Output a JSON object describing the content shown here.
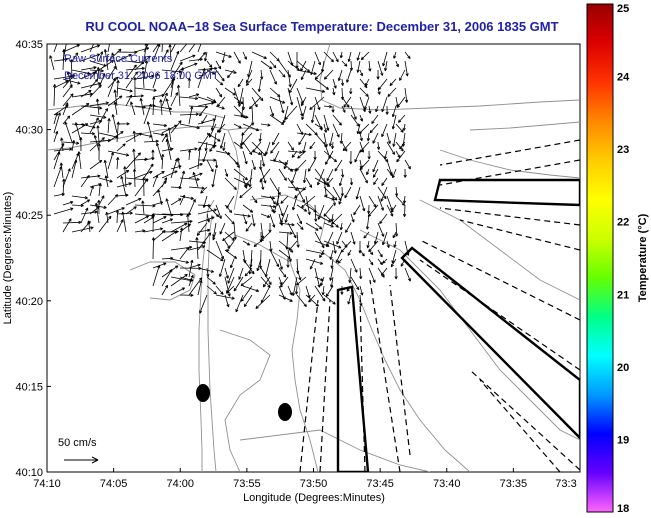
{
  "title": "RU COOL  NOAA−18  Sea Surface Temperature:  December 31, 2006 1835 GMT",
  "legend": {
    "line1": "Raw Surface Currents",
    "line2": "December 31, 2006 18:00 GMT"
  },
  "scale_label": "50 cm/s",
  "axes": {
    "xlabel": "Longitude (Degrees:Minutes)",
    "ylabel": "Latitude (Degrees:Minutes)",
    "x_ticks": [
      "74:10",
      "74:05",
      "74:00",
      "73:55",
      "73:50",
      "73:45",
      "73:40",
      "73:35",
      "73:3"
    ],
    "y_ticks": [
      "40:35",
      "40:30",
      "40:25",
      "40:20",
      "40:15",
      "40:10"
    ]
  },
  "colorbar": {
    "label": "Temperature (°C)",
    "ticks": [
      "25",
      "24",
      "23",
      "22",
      "21",
      "20",
      "19",
      "18"
    ],
    "range": [
      18,
      25
    ],
    "colors": [
      "#ff66ff",
      "#6600ff",
      "#0000ff",
      "#0099ff",
      "#00ffff",
      "#00ff88",
      "#66ff00",
      "#ccff00",
      "#ffff00",
      "#ffcc00",
      "#ff8800",
      "#ff3300",
      "#dd0000",
      "#990000"
    ]
  },
  "colors": {
    "title": "#1f1fa8",
    "legend": "#1f1fa8",
    "contour": "#909090",
    "vector": "#000000"
  }
}
